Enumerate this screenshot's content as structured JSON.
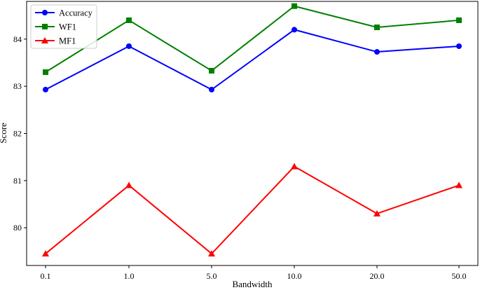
{
  "chart_data": {
    "type": "line",
    "title": "",
    "xlabel": "Bandwidth",
    "ylabel": "Score",
    "categories": [
      "0.1",
      "1.0",
      "5.0",
      "10.0",
      "20.0",
      "50.0"
    ],
    "y_ticks": [
      "80",
      "81",
      "82",
      "83",
      "84"
    ],
    "ylim": [
      79.2,
      84.8
    ],
    "grid": false,
    "legend_position": "top-left",
    "series": [
      {
        "name": "Accuracy",
        "values": [
          82.93,
          83.85,
          82.93,
          84.2,
          83.73,
          83.85
        ],
        "color": "#0000ff",
        "marker": "circle"
      },
      {
        "name": "WF1",
        "values": [
          83.3,
          84.4,
          83.33,
          84.7,
          84.25,
          84.4
        ],
        "color": "#008000",
        "marker": "square"
      },
      {
        "name": "MF1",
        "values": [
          79.45,
          80.9,
          79.45,
          81.3,
          80.3,
          80.9
        ],
        "color": "#ff0000",
        "marker": "triangle"
      }
    ]
  }
}
